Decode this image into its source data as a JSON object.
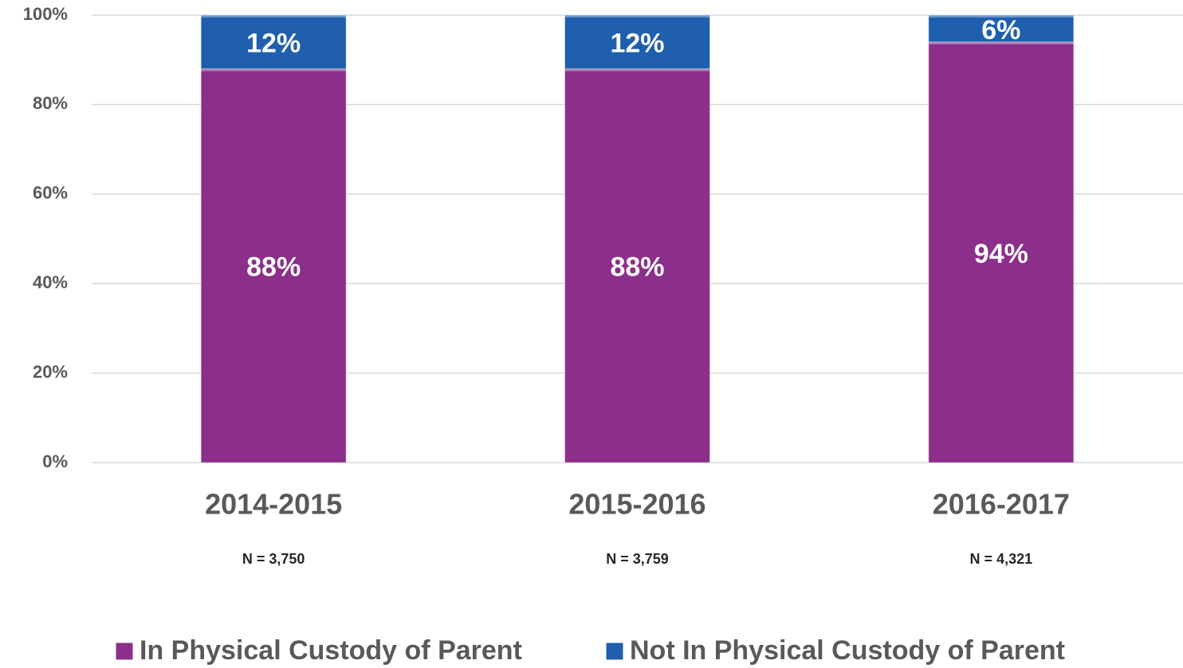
{
  "chart_data": {
    "type": "stacked_bar",
    "categories": [
      "2014-2015",
      "2015-2016",
      "2016-2017"
    ],
    "sample_sizes": [
      "N = 3,750",
      "N = 3,759",
      "N = 4,321"
    ],
    "series": [
      {
        "name": "In Physical Custody of Parent",
        "color": "#8b2f8a",
        "values": [
          88,
          88,
          94
        ],
        "value_labels": [
          "88%",
          "88%",
          "94%"
        ]
      },
      {
        "name": "Not In Physical Custody of Parent",
        "color": "#1f5fad",
        "values": [
          12,
          12,
          6
        ],
        "value_labels": [
          "12%",
          "12%",
          "6%"
        ]
      }
    ],
    "ylim": [
      0,
      100
    ],
    "yticks": [
      {
        "value": 0,
        "label": "0%"
      },
      {
        "value": 20,
        "label": "20%"
      },
      {
        "value": 40,
        "label": "40%"
      },
      {
        "value": 60,
        "label": "60%"
      },
      {
        "value": 80,
        "label": "80%"
      },
      {
        "value": 100,
        "label": "100%"
      }
    ],
    "grid": true,
    "legend": "bottom"
  }
}
